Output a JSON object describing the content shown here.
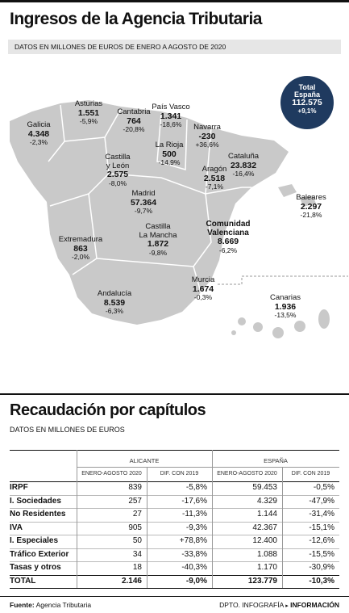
{
  "header": {
    "title": "Ingresos de la Agencia Tributaria",
    "subtitle": "DATOS EN MILLONES DE EUROS DE ENERO A AGOSTO DE 2020"
  },
  "map": {
    "total": {
      "label": [
        "Total",
        "España"
      ],
      "value": "112.575",
      "change": "+9,1%"
    },
    "regions": [
      {
        "name": [
          "Asturias"
        ],
        "value": "1.551",
        "change": "-5,9%"
      },
      {
        "name": [
          "Cantabria"
        ],
        "value": "764",
        "change": "-20,8%"
      },
      {
        "name": [
          "País Vasco"
        ],
        "value": "1.341",
        "change": "-18,6%"
      },
      {
        "name": [
          "Galicia"
        ],
        "value": "4.348",
        "change": "-2,3%"
      },
      {
        "name": [
          "Navarra"
        ],
        "value": "-230",
        "change": "+36,6%"
      },
      {
        "name": [
          "La Rioja"
        ],
        "value": "500",
        "change": "-14,9%"
      },
      {
        "name": [
          "Castilla",
          "y León"
        ],
        "value": "2.575",
        "change": "-8,0%"
      },
      {
        "name": [
          "Cataluña"
        ],
        "value": "23.832",
        "change": "-16,4%"
      },
      {
        "name": [
          "Aragón"
        ],
        "value": "2.518",
        "change": "-7,1%"
      },
      {
        "name": [
          "Baleares"
        ],
        "value": "2.297",
        "change": "-21,8%"
      },
      {
        "name": [
          "Madrid"
        ],
        "value": "57.364",
        "change": "-9,7%"
      },
      {
        "name": [
          "Extremadura"
        ],
        "value": "863",
        "change": "-2,0%"
      },
      {
        "name": [
          "Castilla",
          "La Mancha"
        ],
        "value": "1.872",
        "change": "-9,8%"
      },
      {
        "name": [
          "Comunidad",
          "Valenciana"
        ],
        "value": "8.669",
        "change": "-6,2%"
      },
      {
        "name": [
          "Murcia"
        ],
        "value": "1.674",
        "change": "-0,3%"
      },
      {
        "name": [
          "Andalucía"
        ],
        "value": "8.539",
        "change": "-6,3%"
      },
      {
        "name": [
          "Canarias"
        ],
        "value": "1.936",
        "change": "-13,5%"
      }
    ]
  },
  "table": {
    "title": "Recaudación por capítulos",
    "subtitle": "DATOS EN MILLONES DE EUROS",
    "groups": [
      "ALICANTE",
      "ESPAÑA"
    ],
    "columns": [
      "ENERO-AGOSTO 2020",
      "DIF. CON 2019",
      "ENERO-AGOSTO 2020",
      "DIF. CON 2019"
    ],
    "rows": [
      [
        "IRPF",
        "839",
        "-5,8%",
        "59.453",
        "-0,5%"
      ],
      [
        "I. Sociedades",
        "257",
        "-17,6%",
        "4.329",
        "-47,9%"
      ],
      [
        "No Residentes",
        "27",
        "-11,3%",
        "1.144",
        "-31,4%"
      ],
      [
        "IVA",
        "905",
        "-9,3%",
        "42.367",
        "-15,1%"
      ],
      [
        "I. Especiales",
        "50",
        "+78,8%",
        "12.400",
        "-12,6%"
      ],
      [
        "Tráfico Exterior",
        "34",
        "-33,8%",
        "1.088",
        "-15,5%"
      ],
      [
        "Tasas y otros",
        "18",
        "-40,3%",
        "1.170",
        "-30,9%"
      ],
      [
        "TOTAL",
        "2.146",
        "-9,0%",
        "123.779",
        "-10,3%"
      ]
    ]
  },
  "footer": {
    "source_label": "Fuente:",
    "source": "Agencia Tributaria",
    "credit": "DPTO. INFOGRAFÍA",
    "brand": "INFORMACIÓN"
  }
}
